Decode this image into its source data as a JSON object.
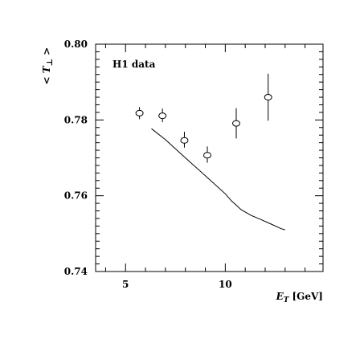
{
  "chart_data": {
    "type": "scatter",
    "annotation": "H1 data",
    "xlabel_main": "E",
    "xlabel_sub": "T",
    "xlabel_unit": "[GeV]",
    "ylabel_left": "<",
    "ylabel_main": "T",
    "ylabel_sub": "⊥",
    "ylabel_right": ">",
    "xlim": [
      3.5,
      14.9
    ],
    "ylim": [
      0.74,
      0.8
    ],
    "x_major_ticks": [
      5,
      10
    ],
    "x_tick_labels": [
      "5",
      "10"
    ],
    "y_major_ticks": [
      0.74,
      0.76,
      0.78,
      0.8
    ],
    "y_tick_labels": [
      "0.74",
      "0.76",
      "0.78",
      "0.80"
    ],
    "x_minor_step": 1,
    "y_minor_step": 0.002,
    "grid": false,
    "series": [
      {
        "kind": "points",
        "x": [
          5.7,
          6.85,
          7.95,
          9.1,
          10.55,
          12.15
        ],
        "y": [
          0.7818,
          0.7811,
          0.7746,
          0.7707,
          0.7791,
          0.786
        ],
        "err_low": [
          0.0016,
          0.0017,
          0.0019,
          0.002,
          0.004,
          0.0062
        ],
        "err_high": [
          0.0016,
          0.0019,
          0.0023,
          0.0023,
          0.004,
          0.0062
        ]
      },
      {
        "kind": "line",
        "x": [
          6.3,
          7.0,
          8.0,
          9.0,
          10.0,
          10.3,
          10.8,
          11.3,
          11.8,
          12.3,
          12.8,
          13.0
        ],
        "y": [
          0.7777,
          0.7748,
          0.77,
          0.7653,
          0.7605,
          0.7587,
          0.7563,
          0.7548,
          0.7537,
          0.7525,
          0.7513,
          0.751
        ]
      }
    ]
  }
}
